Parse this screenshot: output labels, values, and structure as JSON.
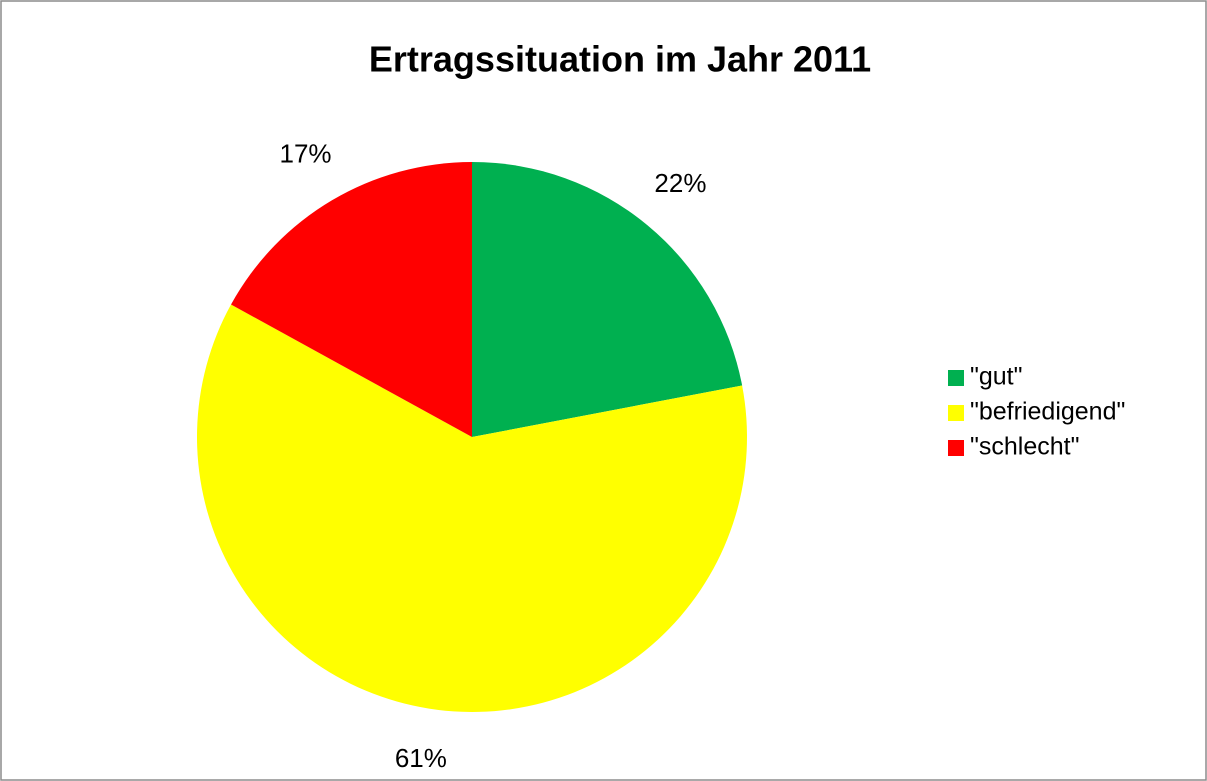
{
  "chart_data": {
    "type": "pie",
    "title": "Ertragssituation im Jahr 2011",
    "categories": [
      "\"gut\"",
      "\"befriedigend\"",
      "\"schlecht\""
    ],
    "values": [
      22,
      61,
      17
    ],
    "value_labels": [
      "22%",
      "61%",
      "17%"
    ],
    "colors": [
      "#00b050",
      "#ffff00",
      "#ff0000"
    ],
    "legend": "right"
  }
}
